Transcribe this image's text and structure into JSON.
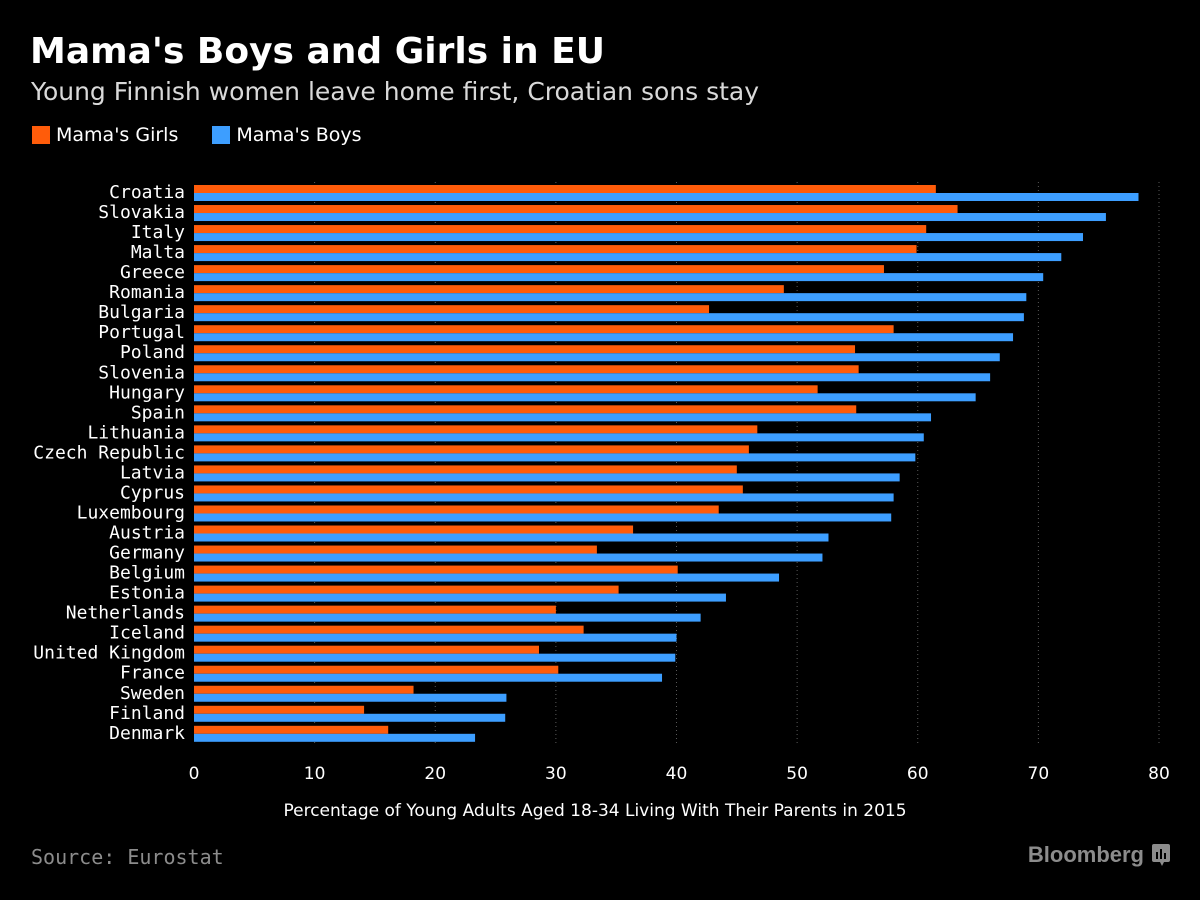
{
  "header": {
    "title": "Mama's Boys and Girls in EU",
    "subtitle": "Young Finnish women leave home first, Croatian sons stay"
  },
  "footer": {
    "source": "Source: Eurostat",
    "brand": "Bloomberg",
    "brand_icon": "bloomberg-terminal-icon"
  },
  "colors": {
    "background": "#000000",
    "girls": "#ff5c0a",
    "boys": "#3d9eff",
    "grid": "#5a5a5a",
    "text": "#ffffff",
    "muted": "#8c8c8c"
  },
  "chart_data": {
    "type": "bar",
    "orientation": "horizontal",
    "title": "Mama's Boys and Girls in EU",
    "subtitle": "Young Finnish women leave home first, Croatian sons stay",
    "xlabel": "Percentage of Young Adults Aged 18-34 Living With Their Parents in 2015",
    "ylabel": "",
    "xlim": [
      0,
      80
    ],
    "xticks": [
      0,
      10,
      20,
      30,
      40,
      50,
      60,
      70,
      80
    ],
    "grid": "vertical dotted",
    "legend_position": "top-left",
    "categories": [
      "Croatia",
      "Slovakia",
      "Italy",
      "Malta",
      "Greece",
      "Romania",
      "Bulgaria",
      "Portugal",
      "Poland",
      "Slovenia",
      "Hungary",
      "Spain",
      "Lithuania",
      "Czech Republic",
      "Latvia",
      "Cyprus",
      "Luxembourg",
      "Austria",
      "Germany",
      "Belgium",
      "Estonia",
      "Netherlands",
      "Iceland",
      "United Kingdom",
      "France",
      "Sweden",
      "Finland",
      "Denmark"
    ],
    "series": [
      {
        "name": "Mama's Girls",
        "color": "#ff5c0a",
        "values": [
          61.5,
          63.3,
          60.7,
          59.9,
          57.2,
          48.9,
          42.7,
          58.0,
          54.8,
          55.1,
          51.7,
          54.9,
          46.7,
          46.0,
          45.0,
          45.5,
          43.5,
          36.4,
          33.4,
          40.1,
          35.2,
          30.0,
          32.3,
          28.6,
          30.2,
          18.2,
          14.1,
          16.1
        ]
      },
      {
        "name": "Mama's Boys",
        "color": "#3d9eff",
        "values": [
          78.3,
          75.6,
          73.7,
          71.9,
          70.4,
          69.0,
          68.8,
          67.9,
          66.8,
          66.0,
          64.8,
          61.1,
          60.5,
          59.8,
          58.5,
          58.0,
          57.8,
          52.6,
          52.1,
          48.5,
          44.1,
          42.0,
          40.0,
          39.9,
          38.8,
          25.9,
          25.8,
          23.3
        ]
      }
    ]
  }
}
